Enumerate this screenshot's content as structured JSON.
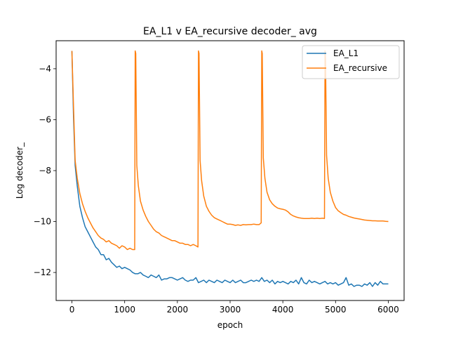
{
  "chart_data": {
    "type": "line",
    "title": "EA_L1 v EA_recursive decoder_ avg",
    "xlabel": "epoch",
    "ylabel": "Log decoder_",
    "xlim": [
      -300,
      6300
    ],
    "ylim": [
      -13.1,
      -2.9
    ],
    "xticks": [
      0,
      1000,
      2000,
      3000,
      4000,
      5000,
      6000
    ],
    "yticks": [
      -12,
      -10,
      -8,
      -6,
      -4
    ],
    "grid": false,
    "legend_position": "top-right",
    "series": [
      {
        "name": "EA_L1",
        "color": "#1f77b4",
        "points": [
          [
            0,
            -3.3
          ],
          [
            30,
            -5.9
          ],
          [
            60,
            -7.8
          ],
          [
            100,
            -8.6
          ],
          [
            150,
            -9.4
          ],
          [
            200,
            -9.85
          ],
          [
            250,
            -10.2
          ],
          [
            300,
            -10.4
          ],
          [
            350,
            -10.6
          ],
          [
            400,
            -10.8
          ],
          [
            450,
            -11.0
          ],
          [
            500,
            -11.1
          ],
          [
            550,
            -11.3
          ],
          [
            600,
            -11.3
          ],
          [
            650,
            -11.5
          ],
          [
            700,
            -11.45
          ],
          [
            750,
            -11.6
          ],
          [
            800,
            -11.7
          ],
          [
            850,
            -11.8
          ],
          [
            900,
            -11.75
          ],
          [
            950,
            -11.85
          ],
          [
            1000,
            -11.8
          ],
          [
            1050,
            -11.85
          ],
          [
            1100,
            -11.9
          ],
          [
            1150,
            -12.0
          ],
          [
            1200,
            -12.05
          ],
          [
            1250,
            -12.05
          ],
          [
            1300,
            -12.0
          ],
          [
            1350,
            -12.1
          ],
          [
            1400,
            -12.15
          ],
          [
            1450,
            -12.2
          ],
          [
            1500,
            -12.1
          ],
          [
            1550,
            -12.15
          ],
          [
            1600,
            -12.2
          ],
          [
            1650,
            -12.1
          ],
          [
            1700,
            -12.3
          ],
          [
            1750,
            -12.25
          ],
          [
            1800,
            -12.25
          ],
          [
            1850,
            -12.2
          ],
          [
            1900,
            -12.2
          ],
          [
            1950,
            -12.25
          ],
          [
            2000,
            -12.3
          ],
          [
            2050,
            -12.25
          ],
          [
            2100,
            -12.2
          ],
          [
            2150,
            -12.3
          ],
          [
            2200,
            -12.35
          ],
          [
            2250,
            -12.3
          ],
          [
            2300,
            -12.3
          ],
          [
            2350,
            -12.2
          ],
          [
            2400,
            -12.4
          ],
          [
            2450,
            -12.35
          ],
          [
            2500,
            -12.3
          ],
          [
            2550,
            -12.4
          ],
          [
            2600,
            -12.3
          ],
          [
            2650,
            -12.35
          ],
          [
            2700,
            -12.4
          ],
          [
            2750,
            -12.3
          ],
          [
            2800,
            -12.35
          ],
          [
            2850,
            -12.4
          ],
          [
            2900,
            -12.3
          ],
          [
            2950,
            -12.35
          ],
          [
            3000,
            -12.4
          ],
          [
            3050,
            -12.3
          ],
          [
            3100,
            -12.4
          ],
          [
            3150,
            -12.35
          ],
          [
            3200,
            -12.3
          ],
          [
            3250,
            -12.4
          ],
          [
            3300,
            -12.4
          ],
          [
            3350,
            -12.35
          ],
          [
            3400,
            -12.3
          ],
          [
            3450,
            -12.35
          ],
          [
            3500,
            -12.3
          ],
          [
            3550,
            -12.35
          ],
          [
            3600,
            -12.2
          ],
          [
            3650,
            -12.35
          ],
          [
            3700,
            -12.3
          ],
          [
            3750,
            -12.4
          ],
          [
            3800,
            -12.3
          ],
          [
            3850,
            -12.45
          ],
          [
            3900,
            -12.35
          ],
          [
            3950,
            -12.4
          ],
          [
            4000,
            -12.35
          ],
          [
            4050,
            -12.4
          ],
          [
            4100,
            -12.45
          ],
          [
            4150,
            -12.35
          ],
          [
            4200,
            -12.4
          ],
          [
            4250,
            -12.3
          ],
          [
            4300,
            -12.45
          ],
          [
            4350,
            -12.2
          ],
          [
            4400,
            -12.4
          ],
          [
            4450,
            -12.45
          ],
          [
            4500,
            -12.3
          ],
          [
            4550,
            -12.4
          ],
          [
            4600,
            -12.35
          ],
          [
            4650,
            -12.4
          ],
          [
            4700,
            -12.45
          ],
          [
            4750,
            -12.4
          ],
          [
            4800,
            -12.35
          ],
          [
            4850,
            -12.45
          ],
          [
            4900,
            -12.4
          ],
          [
            4950,
            -12.45
          ],
          [
            5000,
            -12.4
          ],
          [
            5050,
            -12.5
          ],
          [
            5100,
            -12.45
          ],
          [
            5150,
            -12.4
          ],
          [
            5200,
            -12.2
          ],
          [
            5250,
            -12.5
          ],
          [
            5300,
            -12.45
          ],
          [
            5350,
            -12.55
          ],
          [
            5400,
            -12.5
          ],
          [
            5450,
            -12.5
          ],
          [
            5500,
            -12.55
          ],
          [
            5550,
            -12.45
          ],
          [
            5600,
            -12.5
          ],
          [
            5650,
            -12.4
          ],
          [
            5700,
            -12.55
          ],
          [
            5750,
            -12.4
          ],
          [
            5800,
            -12.5
          ],
          [
            5850,
            -12.35
          ],
          [
            5900,
            -12.45
          ],
          [
            5950,
            -12.45
          ],
          [
            6000,
            -12.45
          ]
        ]
      },
      {
        "name": "EA_recursive",
        "color": "#ff7f0e",
        "points": [
          [
            0,
            -3.3
          ],
          [
            30,
            -5.5
          ],
          [
            60,
            -7.6
          ],
          [
            100,
            -8.3
          ],
          [
            150,
            -8.9
          ],
          [
            200,
            -9.3
          ],
          [
            250,
            -9.6
          ],
          [
            300,
            -9.85
          ],
          [
            350,
            -10.05
          ],
          [
            400,
            -10.25
          ],
          [
            450,
            -10.4
          ],
          [
            500,
            -10.55
          ],
          [
            550,
            -10.65
          ],
          [
            600,
            -10.7
          ],
          [
            650,
            -10.8
          ],
          [
            700,
            -10.75
          ],
          [
            750,
            -10.85
          ],
          [
            800,
            -10.9
          ],
          [
            850,
            -10.95
          ],
          [
            900,
            -11.05
          ],
          [
            950,
            -10.95
          ],
          [
            1000,
            -11.0
          ],
          [
            1050,
            -11.1
          ],
          [
            1100,
            -11.05
          ],
          [
            1150,
            -11.1
          ],
          [
            1190,
            -11.1
          ],
          [
            1200,
            -3.3
          ],
          [
            1210,
            -3.4
          ],
          [
            1230,
            -7.8
          ],
          [
            1260,
            -8.6
          ],
          [
            1300,
            -9.2
          ],
          [
            1350,
            -9.55
          ],
          [
            1400,
            -9.8
          ],
          [
            1450,
            -10.0
          ],
          [
            1500,
            -10.15
          ],
          [
            1550,
            -10.3
          ],
          [
            1600,
            -10.4
          ],
          [
            1650,
            -10.45
          ],
          [
            1700,
            -10.55
          ],
          [
            1750,
            -10.6
          ],
          [
            1800,
            -10.65
          ],
          [
            1850,
            -10.7
          ],
          [
            1900,
            -10.75
          ],
          [
            1950,
            -10.75
          ],
          [
            2000,
            -10.8
          ],
          [
            2050,
            -10.85
          ],
          [
            2100,
            -10.85
          ],
          [
            2150,
            -10.9
          ],
          [
            2200,
            -10.9
          ],
          [
            2250,
            -10.95
          ],
          [
            2300,
            -10.9
          ],
          [
            2350,
            -10.95
          ],
          [
            2390,
            -11.0
          ],
          [
            2400,
            -3.3
          ],
          [
            2410,
            -3.4
          ],
          [
            2430,
            -7.6
          ],
          [
            2460,
            -8.4
          ],
          [
            2500,
            -9.0
          ],
          [
            2550,
            -9.4
          ],
          [
            2600,
            -9.6
          ],
          [
            2650,
            -9.75
          ],
          [
            2700,
            -9.85
          ],
          [
            2750,
            -9.9
          ],
          [
            2800,
            -9.95
          ],
          [
            2850,
            -10.0
          ],
          [
            2900,
            -10.05
          ],
          [
            2950,
            -10.1
          ],
          [
            3000,
            -10.1
          ],
          [
            3050,
            -10.12
          ],
          [
            3100,
            -10.15
          ],
          [
            3150,
            -10.13
          ],
          [
            3200,
            -10.15
          ],
          [
            3250,
            -10.12
          ],
          [
            3300,
            -10.13
          ],
          [
            3350,
            -10.12
          ],
          [
            3400,
            -10.12
          ],
          [
            3450,
            -10.1
          ],
          [
            3500,
            -10.12
          ],
          [
            3550,
            -10.12
          ],
          [
            3590,
            -10.05
          ],
          [
            3600,
            -3.3
          ],
          [
            3610,
            -3.4
          ],
          [
            3630,
            -7.5
          ],
          [
            3660,
            -8.3
          ],
          [
            3700,
            -8.85
          ],
          [
            3750,
            -9.15
          ],
          [
            3800,
            -9.3
          ],
          [
            3850,
            -9.4
          ],
          [
            3900,
            -9.47
          ],
          [
            3950,
            -9.5
          ],
          [
            4000,
            -9.52
          ],
          [
            4050,
            -9.55
          ],
          [
            4100,
            -9.62
          ],
          [
            4150,
            -9.72
          ],
          [
            4200,
            -9.78
          ],
          [
            4250,
            -9.82
          ],
          [
            4300,
            -9.85
          ],
          [
            4350,
            -9.87
          ],
          [
            4400,
            -9.88
          ],
          [
            4450,
            -9.88
          ],
          [
            4500,
            -9.88
          ],
          [
            4550,
            -9.87
          ],
          [
            4600,
            -9.88
          ],
          [
            4650,
            -9.87
          ],
          [
            4700,
            -9.88
          ],
          [
            4750,
            -9.87
          ],
          [
            4790,
            -9.88
          ],
          [
            4800,
            -3.3
          ],
          [
            4810,
            -3.6
          ],
          [
            4830,
            -7.4
          ],
          [
            4860,
            -8.3
          ],
          [
            4900,
            -8.85
          ],
          [
            4950,
            -9.2
          ],
          [
            5000,
            -9.45
          ],
          [
            5050,
            -9.58
          ],
          [
            5100,
            -9.65
          ],
          [
            5150,
            -9.72
          ],
          [
            5200,
            -9.75
          ],
          [
            5250,
            -9.8
          ],
          [
            5300,
            -9.83
          ],
          [
            5350,
            -9.86
          ],
          [
            5400,
            -9.88
          ],
          [
            5450,
            -9.9
          ],
          [
            5500,
            -9.92
          ],
          [
            5550,
            -9.94
          ],
          [
            5600,
            -9.95
          ],
          [
            5650,
            -9.96
          ],
          [
            5700,
            -9.97
          ],
          [
            5750,
            -9.97
          ],
          [
            5800,
            -9.98
          ],
          [
            5850,
            -9.98
          ],
          [
            5900,
            -9.98
          ],
          [
            5950,
            -9.99
          ],
          [
            6000,
            -10.0
          ]
        ]
      }
    ]
  }
}
